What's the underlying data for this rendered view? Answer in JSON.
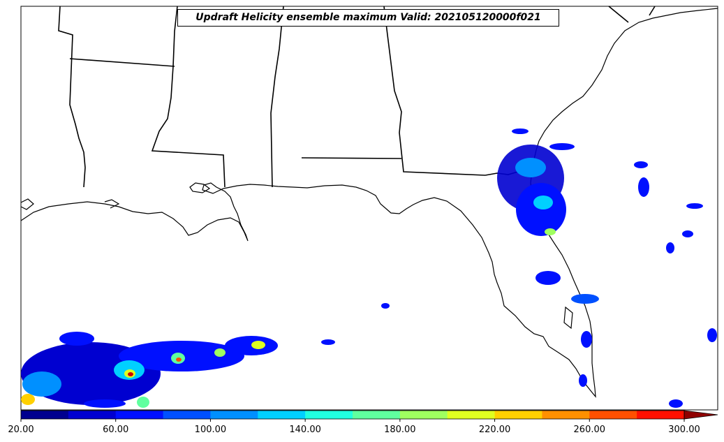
{
  "title": "Updraft Helicity ensemble maximum Valid: 202105120000f021",
  "colorbar": {
    "tick_labels": [
      "20.00",
      "60.00",
      "100.00",
      "140.00",
      "180.00",
      "220.00",
      "260.00",
      "300.00"
    ],
    "levels": [
      20,
      40,
      60,
      80,
      100,
      120,
      140,
      160,
      180,
      200,
      220,
      240,
      260,
      280,
      300
    ],
    "colors": [
      "#00008f",
      "#0000d0",
      "#0010ff",
      "#0050ff",
      "#0090ff",
      "#00d0ff",
      "#20ffdf",
      "#60ff9f",
      "#9fff60",
      "#dfff20",
      "#ffd000",
      "#ff9000",
      "#ff5000",
      "#ff1000",
      "#cf0000",
      "#8f0000"
    ],
    "extend": "max"
  },
  "colors": {
    "background": "#ffffff",
    "coastline": "#000000"
  }
}
